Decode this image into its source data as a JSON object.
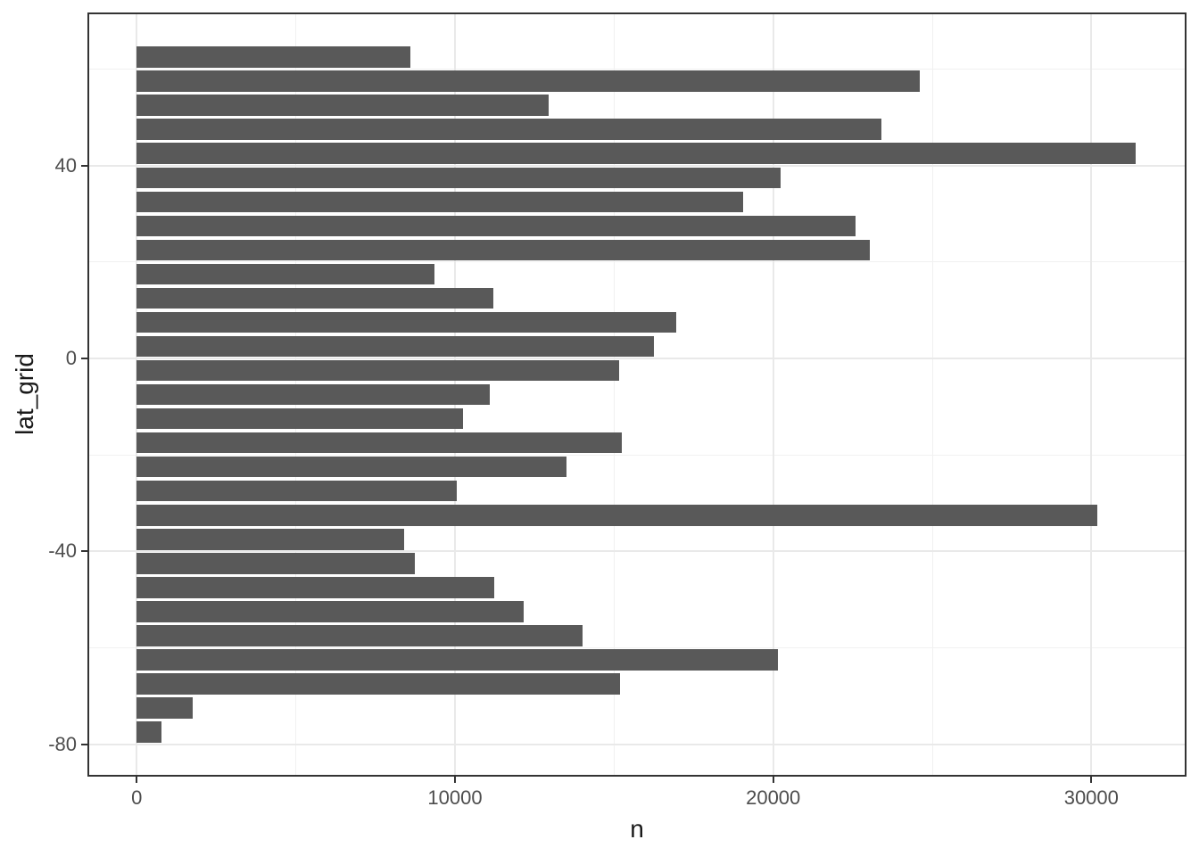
{
  "figure": {
    "background": "#FFFFFF",
    "panel_border_color": "#333333",
    "grid_major_color": "#E9E9E9",
    "grid_minor_color": "#F1F1F1",
    "tick_mark_color": "#333333",
    "tick_label_color": "#4D4D4D",
    "axis_title_color": "#1A1A1A"
  },
  "chart_data": {
    "type": "bar",
    "orientation": "horizontal",
    "title": "",
    "xlabel": "n",
    "ylabel": "lat_grid",
    "bar_color": "#595959",
    "bar_width_units": 4.5,
    "x_axis": {
      "ticks": [
        0,
        10000,
        20000,
        30000
      ],
      "minor_ticks": [
        5000,
        15000,
        25000
      ],
      "lim": [
        -1523,
        32963
      ],
      "grid": true
    },
    "y_axis": {
      "ticks": [
        40,
        0,
        -40,
        -80
      ],
      "minor_ticks": [
        60,
        20,
        -20,
        -60
      ],
      "lim": [
        -86.55,
        71.57
      ],
      "grid": true
    },
    "categories_lat_grid": [
      62.5,
      57.5,
      52.5,
      47.5,
      42.5,
      37.5,
      32.5,
      27.5,
      22.5,
      17.5,
      12.5,
      7.5,
      2.5,
      -2.5,
      -7.5,
      -12.5,
      -17.5,
      -22.5,
      -27.5,
      -32.5,
      -37.5,
      -42.5,
      -47.5,
      -52.5,
      -57.5,
      -62.5,
      -67.5,
      -72.5,
      -77.5
    ],
    "values_n": [
      8600,
      24600,
      12950,
      23400,
      31400,
      20250,
      19050,
      22600,
      23050,
      9350,
      11200,
      16950,
      16250,
      15150,
      11100,
      10250,
      15250,
      13500,
      10050,
      30200,
      8400,
      8750,
      11250,
      12150,
      14000,
      20150,
      15200,
      1750,
      780
    ]
  }
}
